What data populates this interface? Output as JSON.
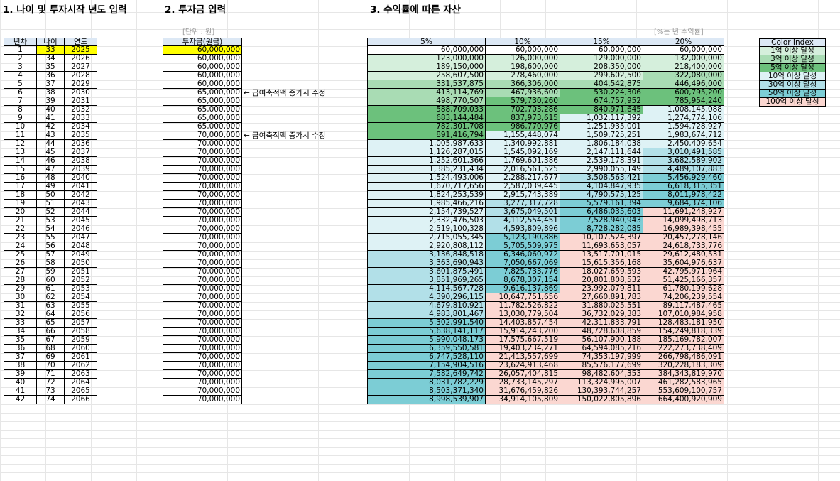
{
  "headings": {
    "h1": "1. 나이 및 투자시작 년도 입력",
    "h2": "2. 투자금 입력",
    "h3": "3. 수익률에 따른 자산"
  },
  "unit_note": "[단위 : 원]",
  "rate_note": "[%는 년 수익률]",
  "age_table": {
    "headers": [
      "년차",
      "나이",
      "연도"
    ],
    "rows": [
      [
        "1",
        "33",
        "2025"
      ],
      [
        "2",
        "34",
        "2026"
      ],
      [
        "3",
        "35",
        "2027"
      ],
      [
        "4",
        "36",
        "2028"
      ],
      [
        "5",
        "37",
        "2029"
      ],
      [
        "6",
        "38",
        "2030"
      ],
      [
        "7",
        "39",
        "2031"
      ],
      [
        "8",
        "40",
        "2032"
      ],
      [
        "9",
        "41",
        "2033"
      ],
      [
        "10",
        "42",
        "2034"
      ],
      [
        "11",
        "43",
        "2035"
      ],
      [
        "12",
        "44",
        "2036"
      ],
      [
        "13",
        "45",
        "2037"
      ],
      [
        "14",
        "46",
        "2038"
      ],
      [
        "15",
        "47",
        "2039"
      ],
      [
        "16",
        "48",
        "2040"
      ],
      [
        "17",
        "49",
        "2041"
      ],
      [
        "18",
        "50",
        "2042"
      ],
      [
        "19",
        "51",
        "2043"
      ],
      [
        "20",
        "52",
        "2044"
      ],
      [
        "21",
        "53",
        "2045"
      ],
      [
        "22",
        "54",
        "2046"
      ],
      [
        "23",
        "55",
        "2047"
      ],
      [
        "24",
        "56",
        "2048"
      ],
      [
        "25",
        "57",
        "2049"
      ],
      [
        "26",
        "58",
        "2050"
      ],
      [
        "27",
        "59",
        "2051"
      ],
      [
        "28",
        "60",
        "2052"
      ],
      [
        "29",
        "61",
        "2053"
      ],
      [
        "30",
        "62",
        "2054"
      ],
      [
        "31",
        "63",
        "2055"
      ],
      [
        "32",
        "64",
        "2056"
      ],
      [
        "33",
        "65",
        "2057"
      ],
      [
        "34",
        "66",
        "2058"
      ],
      [
        "35",
        "67",
        "2059"
      ],
      [
        "36",
        "68",
        "2060"
      ],
      [
        "37",
        "69",
        "2061"
      ],
      [
        "38",
        "70",
        "2062"
      ],
      [
        "39",
        "71",
        "2063"
      ],
      [
        "40",
        "72",
        "2064"
      ],
      [
        "41",
        "73",
        "2065"
      ],
      [
        "42",
        "74",
        "2066"
      ]
    ]
  },
  "invest_table": {
    "header": "투자금(원금)",
    "values": [
      "60,000,000",
      "60,000,000",
      "60,000,000",
      "60,000,000",
      "60,000,000",
      "65,000,000",
      "65,000,000",
      "65,000,000",
      "65,000,000",
      "65,000,000",
      "70,000,000",
      "70,000,000",
      "70,000,000",
      "70,000,000",
      "70,000,000",
      "70,000,000",
      "70,000,000",
      "70,000,000",
      "70,000,000",
      "70,000,000",
      "70,000,000",
      "70,000,000",
      "70,000,000",
      "70,000,000",
      "70,000,000",
      "70,000,000",
      "70,000,000",
      "70,000,000",
      "70,000,000",
      "70,000,000",
      "70,000,000",
      "70,000,000",
      "70,000,000",
      "70,000,000",
      "70,000,000",
      "70,000,000",
      "70,000,000",
      "70,000,000",
      "70,000,000",
      "70,000,000",
      "70,000,000",
      "70,000,000"
    ]
  },
  "notes": [
    {
      "row": 6,
      "text": "← 급여축적액 증가시 수정"
    },
    {
      "row": 11,
      "text": "← 급여축적액 증가시 수정"
    }
  ],
  "asset_table": {
    "headers": [
      "5%",
      "10%",
      "15%",
      "20%"
    ],
    "rows": [
      [
        "60,000,000",
        "60,000,000",
        "60,000,000",
        "60,000,000"
      ],
      [
        "123,000,000",
        "126,000,000",
        "129,000,000",
        "132,000,000"
      ],
      [
        "189,150,000",
        "198,600,000",
        "208,350,000",
        "218,400,000"
      ],
      [
        "258,607,500",
        "278,460,000",
        "299,602,500",
        "322,080,000"
      ],
      [
        "331,537,875",
        "366,306,000",
        "404,542,875",
        "446,496,000"
      ],
      [
        "413,114,769",
        "467,936,600",
        "530,224,306",
        "600,795,200"
      ],
      [
        "498,770,507",
        "579,730,260",
        "674,757,952",
        "785,954,240"
      ],
      [
        "588,709,033",
        "702,703,286",
        "840,971,645",
        "1,008,145,088"
      ],
      [
        "683,144,484",
        "837,973,615",
        "1,032,117,392",
        "1,274,774,106"
      ],
      [
        "782,301,708",
        "986,770,976",
        "1,251,935,001",
        "1,594,728,927"
      ],
      [
        "891,416,794",
        "1,155,448,074",
        "1,509,725,251",
        "1,983,674,712"
      ],
      [
        "1,005,987,633",
        "1,340,992,881",
        "1,806,184,038",
        "2,450,409,654"
      ],
      [
        "1,126,287,015",
        "1,545,092,169",
        "2,147,111,644",
        "3,010,491,585"
      ],
      [
        "1,252,601,366",
        "1,769,601,386",
        "2,539,178,391",
        "3,682,589,902"
      ],
      [
        "1,385,231,434",
        "2,016,561,525",
        "2,990,055,149",
        "4,489,107,883"
      ],
      [
        "1,524,493,006",
        "2,288,217,677",
        "3,508,563,421",
        "5,456,929,460"
      ],
      [
        "1,670,717,656",
        "2,587,039,445",
        "4,104,847,935",
        "6,618,315,351"
      ],
      [
        "1,824,253,539",
        "2,915,743,389",
        "4,790,575,125",
        "8,011,978,422"
      ],
      [
        "1,985,466,216",
        "3,277,317,728",
        "5,579,161,394",
        "9,684,374,106"
      ],
      [
        "2,154,739,527",
        "3,675,049,501",
        "6,486,035,603",
        "11,691,248,927"
      ],
      [
        "2,332,476,503",
        "4,112,554,451",
        "7,528,940,943",
        "14,099,498,713"
      ],
      [
        "2,519,100,328",
        "4,593,809,896",
        "8,728,282,085",
        "16,989,398,455"
      ],
      [
        "2,715,055,345",
        "5,123,190,886",
        "10,107,524,397",
        "20,457,278,146"
      ],
      [
        "2,920,808,112",
        "5,705,509,975",
        "11,693,653,057",
        "24,618,733,776"
      ],
      [
        "3,136,848,518",
        "6,346,060,972",
        "13,517,701,015",
        "29,612,480,531"
      ],
      [
        "3,363,690,943",
        "7,050,667,069",
        "15,615,356,168",
        "35,604,976,637"
      ],
      [
        "3,601,875,491",
        "7,825,733,776",
        "18,027,659,593",
        "42,795,971,964"
      ],
      [
        "3,851,969,265",
        "8,678,307,154",
        "20,801,808,532",
        "51,425,166,357"
      ],
      [
        "4,114,567,728",
        "9,616,137,869",
        "23,992,079,811",
        "61,780,199,628"
      ],
      [
        "4,390,296,115",
        "10,647,751,656",
        "27,660,891,783",
        "74,206,239,554"
      ],
      [
        "4,679,810,921",
        "11,782,526,822",
        "31,880,025,551",
        "89,117,487,465"
      ],
      [
        "4,983,801,467",
        "13,030,779,504",
        "36,732,029,383",
        "107,010,984,958"
      ],
      [
        "5,302,991,540",
        "14,403,857,454",
        "42,311,833,791",
        "128,483,181,950"
      ],
      [
        "5,638,141,117",
        "15,914,243,200",
        "48,728,608,859",
        "154,249,818,339"
      ],
      [
        "5,990,048,173",
        "17,575,667,519",
        "56,107,900,188",
        "185,169,782,007"
      ],
      [
        "6,359,550,581",
        "19,403,234,271",
        "64,594,085,216",
        "222,273,738,409"
      ],
      [
        "6,747,528,110",
        "21,413,557,699",
        "74,353,197,999",
        "266,798,486,091"
      ],
      [
        "7,154,904,516",
        "23,624,913,468",
        "85,576,177,699",
        "320,228,183,309"
      ],
      [
        "7,582,649,742",
        "26,057,404,815",
        "98,482,604,353",
        "384,343,819,970"
      ],
      [
        "8,031,782,229",
        "28,733,145,297",
        "113,324,995,007",
        "461,282,583,965"
      ],
      [
        "8,503,371,340",
        "31,676,459,826",
        "130,393,744,257",
        "553,609,100,757"
      ],
      [
        "8,998,539,907",
        "34,914,105,809",
        "150,022,805,896",
        "664,400,920,909"
      ]
    ]
  },
  "color_index": {
    "header": "Color Index",
    "items": [
      {
        "label": "1억 이상 달성",
        "color": "#d5efdc"
      },
      {
        "label": "3억 이상 달성",
        "color": "#a9dcb4"
      },
      {
        "label": "5억 이상 달성",
        "color": "#6cc17c"
      },
      {
        "label": "10억 이상 달성",
        "color": "#def2f5"
      },
      {
        "label": "30억 이상 달성",
        "color": "#b2e0e8"
      },
      {
        "label": "50억 이상 달성",
        "color": "#7ccdd5"
      },
      {
        "label": "100억 이상 달성",
        "color": "#fbd7d1"
      }
    ]
  }
}
